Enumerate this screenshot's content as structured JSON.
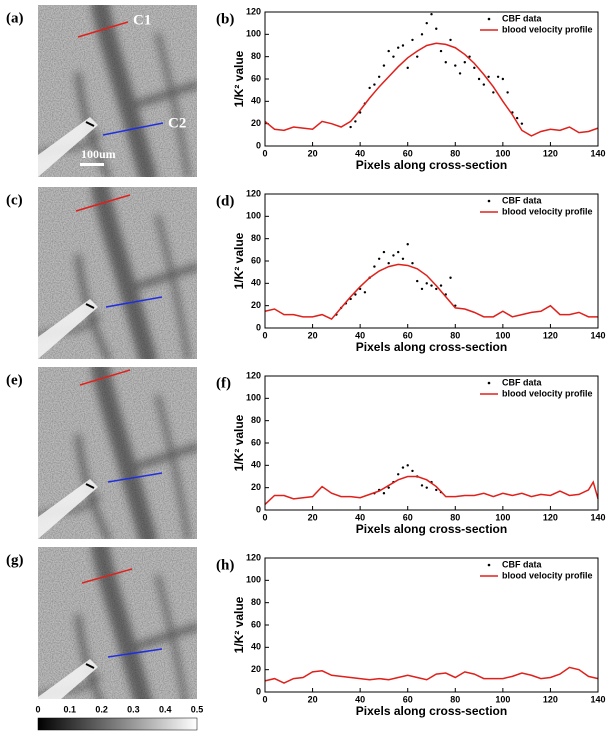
{
  "chart_data": [
    {
      "type": "line",
      "label": "(b)",
      "xlabel": "Pixels along cross-section",
      "ylabel": "1/K² value",
      "xlim": [
        0,
        140
      ],
      "ylim": [
        0,
        120
      ],
      "xticks": [
        0,
        20,
        40,
        60,
        80,
        100,
        120,
        140
      ],
      "yticks": [
        0,
        20,
        40,
        60,
        80,
        100,
        120
      ],
      "legend": "upper right",
      "series": [
        {
          "name": "CBF data",
          "color": "#000000",
          "mode": "markers",
          "x": [
            36,
            38,
            40,
            42,
            44,
            46,
            48,
            50,
            52,
            54,
            56,
            58,
            60,
            62,
            64,
            66,
            68,
            70,
            72,
            74,
            76,
            78,
            80,
            82,
            84,
            86,
            88,
            90,
            92,
            94,
            96,
            98,
            100,
            102,
            104,
            106,
            108
          ],
          "values": [
            17,
            22,
            30,
            38,
            52,
            55,
            62,
            72,
            85,
            80,
            88,
            90,
            70,
            95,
            80,
            100,
            110,
            118,
            105,
            85,
            75,
            95,
            72,
            65,
            75,
            80,
            70,
            60,
            55,
            62,
            48,
            62,
            60,
            48,
            30,
            25,
            20
          ]
        },
        {
          "name": "blood velocity profile",
          "color": "#e0201b",
          "mode": "lines",
          "x": [
            0,
            4,
            8,
            12,
            16,
            20,
            24,
            28,
            32,
            36,
            40,
            44,
            48,
            52,
            56,
            60,
            64,
            68,
            72,
            76,
            80,
            84,
            88,
            92,
            96,
            100,
            104,
            108,
            112,
            116,
            120,
            124,
            128,
            132,
            136,
            140
          ],
          "values": [
            22,
            15,
            14,
            17,
            16,
            15,
            22,
            20,
            17,
            22,
            32,
            43,
            53,
            62,
            71,
            79,
            85,
            90,
            92,
            91,
            88,
            82,
            74,
            64,
            53,
            40,
            28,
            14,
            9,
            13,
            15,
            14,
            17,
            12,
            13,
            16
          ]
        }
      ]
    },
    {
      "type": "line",
      "label": "(d)",
      "xlabel": "Pixels along cross-section",
      "ylabel": "1/K² value",
      "xlim": [
        0,
        140
      ],
      "ylim": [
        0,
        120
      ],
      "xticks": [
        0,
        20,
        40,
        60,
        80,
        100,
        120,
        140
      ],
      "yticks": [
        0,
        20,
        40,
        60,
        80,
        100,
        120
      ],
      "legend": "upper right",
      "series": [
        {
          "name": "CBF data",
          "color": "#000000",
          "mode": "markers",
          "x": [
            30,
            32,
            34,
            36,
            38,
            40,
            42,
            44,
            46,
            48,
            50,
            52,
            54,
            56,
            58,
            60,
            62,
            64,
            66,
            68,
            70,
            72,
            74,
            76,
            78,
            80
          ],
          "values": [
            12,
            18,
            22,
            26,
            30,
            35,
            32,
            45,
            55,
            62,
            68,
            58,
            65,
            68,
            62,
            75,
            58,
            42,
            35,
            40,
            38,
            35,
            38,
            30,
            45,
            20
          ]
        },
        {
          "name": "blood velocity profile",
          "color": "#e0201b",
          "mode": "lines",
          "x": [
            0,
            4,
            8,
            12,
            16,
            20,
            24,
            28,
            32,
            36,
            40,
            44,
            48,
            52,
            56,
            60,
            64,
            68,
            72,
            76,
            80,
            84,
            88,
            92,
            96,
            100,
            104,
            108,
            112,
            116,
            120,
            124,
            128,
            132,
            136,
            140
          ],
          "values": [
            15,
            17,
            12,
            12,
            10,
            10,
            12,
            8,
            18,
            28,
            37,
            45,
            51,
            55,
            57,
            56,
            53,
            47,
            38,
            28,
            18,
            17,
            14,
            10,
            10,
            15,
            10,
            12,
            14,
            15,
            20,
            12,
            12,
            14,
            10,
            10
          ]
        }
      ]
    },
    {
      "type": "line",
      "label": "(f)",
      "xlabel": "Pixels along cross-section",
      "ylabel": "1/K² value",
      "xlim": [
        0,
        140
      ],
      "ylim": [
        0,
        120
      ],
      "xticks": [
        0,
        20,
        40,
        60,
        80,
        100,
        120,
        140
      ],
      "yticks": [
        0,
        20,
        40,
        60,
        80,
        100,
        120
      ],
      "legend": "upper right",
      "series": [
        {
          "name": "CBF data",
          "color": "#000000",
          "mode": "markers",
          "x": [
            46,
            48,
            50,
            52,
            54,
            56,
            58,
            60,
            62,
            64,
            66,
            68,
            70,
            72,
            74
          ],
          "values": [
            15,
            18,
            15,
            20,
            25,
            32,
            38,
            40,
            35,
            30,
            22,
            20,
            25,
            18,
            16
          ]
        },
        {
          "name": "blood velocity profile",
          "color": "#e0201b",
          "mode": "lines",
          "x": [
            0,
            4,
            8,
            12,
            16,
            20,
            24,
            28,
            32,
            36,
            40,
            44,
            48,
            52,
            56,
            60,
            64,
            68,
            72,
            76,
            80,
            84,
            88,
            92,
            96,
            100,
            104,
            108,
            112,
            116,
            120,
            124,
            128,
            132,
            136,
            138,
            140
          ],
          "values": [
            5,
            13,
            13,
            10,
            11,
            12,
            21,
            15,
            12,
            12,
            11,
            14,
            17,
            22,
            27,
            30,
            30,
            27,
            21,
            12,
            12,
            13,
            13,
            15,
            12,
            15,
            13,
            15,
            12,
            14,
            13,
            17,
            13,
            14,
            18,
            25,
            10
          ]
        }
      ]
    },
    {
      "type": "line",
      "label": "(h)",
      "xlabel": "Pixels along cross-section",
      "ylabel": "1/K² value",
      "xlim": [
        0,
        140
      ],
      "ylim": [
        0,
        120
      ],
      "xticks": [
        0,
        20,
        40,
        60,
        80,
        100,
        120,
        140
      ],
      "yticks": [
        0,
        20,
        40,
        60,
        80,
        100,
        120
      ],
      "legend": "upper right",
      "series": [
        {
          "name": "CBF data",
          "color": "#000000",
          "mode": "markers",
          "x": [],
          "values": []
        },
        {
          "name": "blood velocity profile",
          "color": "#e0201b",
          "mode": "lines",
          "x": [
            0,
            4,
            8,
            12,
            16,
            20,
            24,
            28,
            32,
            36,
            40,
            44,
            48,
            52,
            56,
            60,
            64,
            68,
            72,
            76,
            80,
            84,
            88,
            92,
            96,
            100,
            104,
            108,
            112,
            116,
            120,
            124,
            128,
            132,
            136,
            140
          ],
          "values": [
            10,
            12,
            8,
            12,
            13,
            18,
            19,
            15,
            14,
            13,
            12,
            11,
            12,
            11,
            13,
            15,
            13,
            11,
            16,
            17,
            13,
            18,
            16,
            12,
            12,
            12,
            14,
            17,
            15,
            12,
            13,
            16,
            22,
            20,
            14,
            12
          ]
        }
      ]
    }
  ],
  "images": {
    "labels": [
      "(a)",
      "(c)",
      "(e)",
      "(g)"
    ],
    "c1": "C1",
    "c2": "C2",
    "scale": "100um",
    "colorbar": {
      "ticks": [
        0,
        0.1,
        0.2,
        0.3,
        0.4,
        0.5
      ]
    }
  }
}
